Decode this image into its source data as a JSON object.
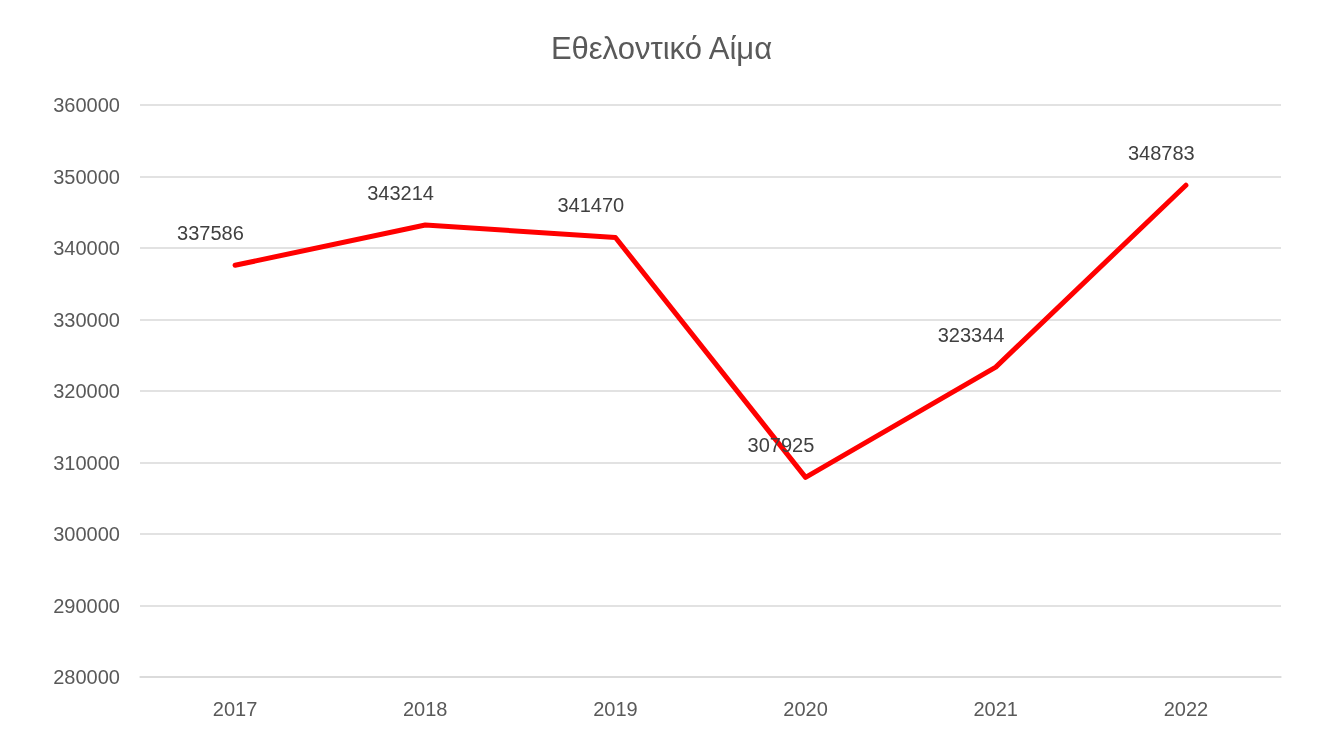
{
  "chart_data": {
    "type": "line",
    "title": "Εθελοντικό Αίμα",
    "categories": [
      "2017",
      "2018",
      "2019",
      "2020",
      "2021",
      "2022"
    ],
    "series": [
      {
        "color": "#ff0000",
        "values": [
          337586,
          343214,
          341470,
          307925,
          323344,
          348783
        ]
      }
    ],
    "ylim": [
      280000,
      360000
    ],
    "yticks": [
      280000,
      290000,
      300000,
      310000,
      320000,
      330000,
      340000,
      350000,
      360000
    ],
    "grid": "y",
    "data_labels": true,
    "marker": "none",
    "line_style": "solid"
  }
}
